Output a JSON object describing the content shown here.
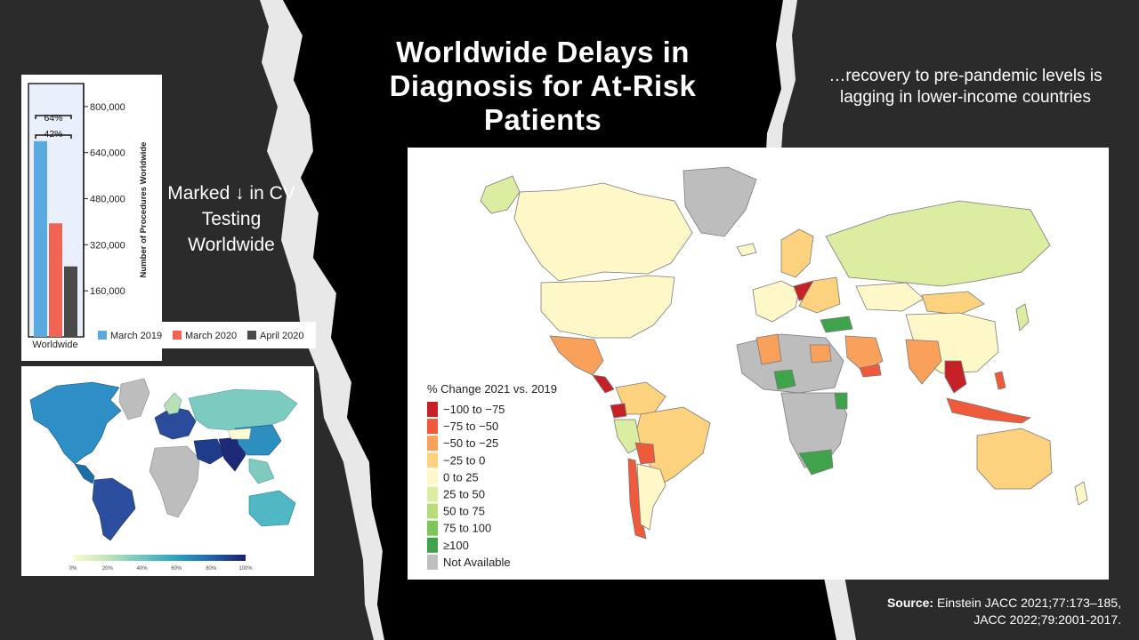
{
  "slide": {
    "title": "Worldwide Delays in Diagnosis for At-Risk Patients",
    "subtitle": "…recovery to pre-pandemic levels is lagging in lower-income countries",
    "bar_caption": "Marked ↓ in CV Testing Worldwide",
    "source_label": "Source:",
    "source_line1": "Einstein JACC 2021;77:173–185,",
    "source_line2": "JACC 2022;79:2001-2017."
  },
  "colors": {
    "background": "#2b2b2b",
    "middle_band": "#000000",
    "torn_paper": "#e8e8e8",
    "bar_march2019": "#5aa9e0",
    "bar_march2020": "#f26452",
    "bar_april2020": "#4a4a4a",
    "bar_panel_bg": "#e9f0fb"
  },
  "chart_data": [
    {
      "type": "bar",
      "categories": [
        "Worldwide"
      ],
      "series": [
        {
          "name": "March 2019",
          "values": [
            680000
          ]
        },
        {
          "name": "March 2020",
          "values": [
            394400
          ]
        },
        {
          "name": "April 2020",
          "values": [
            244800
          ]
        }
      ],
      "ylabel": "Number of Procedures Worldwide",
      "yticks": [
        "160,000",
        "320,000",
        "480,000",
        "640,000",
        "800,000"
      ],
      "ylim": [
        0,
        880000
      ],
      "annotations": [
        "64%",
        "42%"
      ],
      "legend_position": "bottom"
    },
    {
      "type": "heatmap",
      "subtype": "choropleth-map",
      "scale_labels": [
        "0%",
        "20%",
        "40%",
        "60%",
        "80%",
        "100%"
      ],
      "scale_colors": [
        "#fbfbd2",
        "#c2e4b8",
        "#6fc6be",
        "#2fa0c0",
        "#2166ac",
        "#1a1f6e"
      ]
    },
    {
      "type": "heatmap",
      "subtype": "choropleth-map",
      "legend_title": "% Change 2021 vs. 2019",
      "legend_position": "bottom-left",
      "legend": [
        {
          "label": "−100 to −75",
          "color": "#c62127"
        },
        {
          "label": "−75 to −50",
          "color": "#ef5a3b"
        },
        {
          "label": "−50 to −25",
          "color": "#f9a05a"
        },
        {
          "label": "−25 to 0",
          "color": "#fdd27e"
        },
        {
          "label": "0 to 25",
          "color": "#fef8c8"
        },
        {
          "label": "25 to 50",
          "color": "#dbeda0"
        },
        {
          "label": "50 to 75",
          "color": "#b6dc7c"
        },
        {
          "label": "75 to 100",
          "color": "#7ec55c"
        },
        {
          "label": "≥100",
          "color": "#3ea34a"
        },
        {
          "label": "Not Available",
          "color": "#bfbfbf"
        }
      ]
    }
  ]
}
